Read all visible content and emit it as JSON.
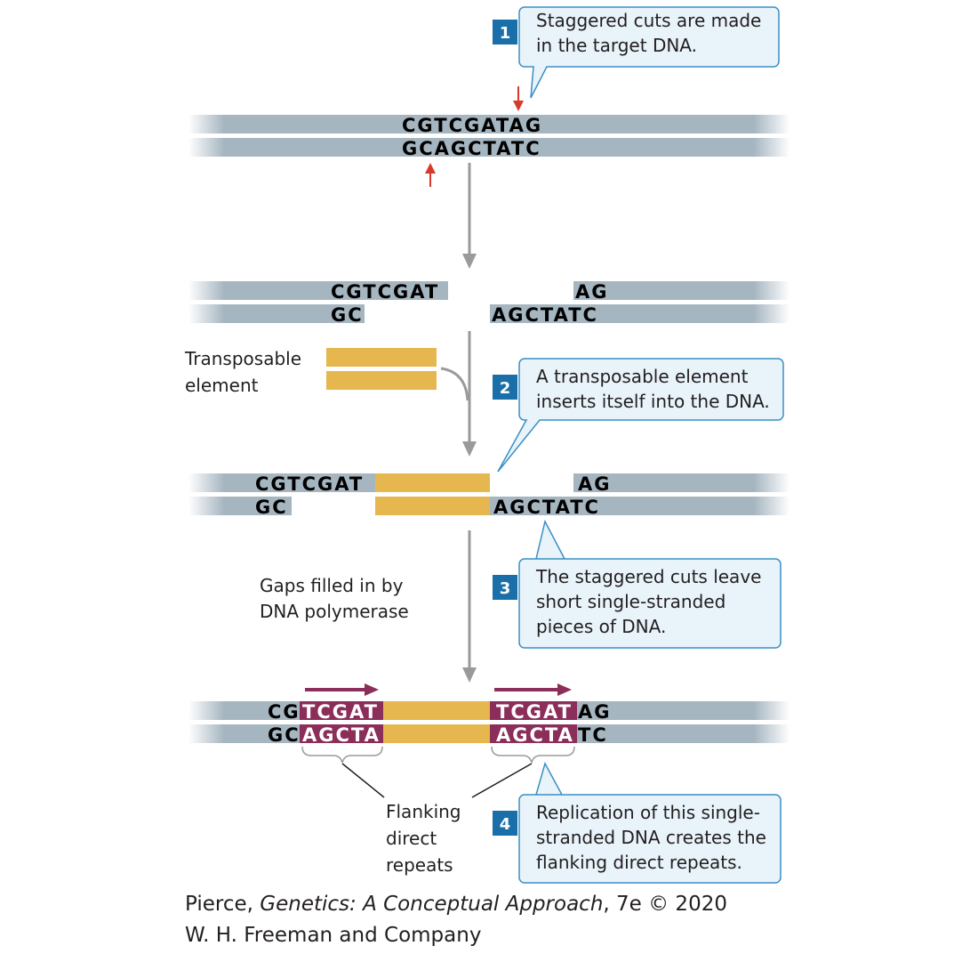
{
  "colors": {
    "dna_strand": "#a6b6c1",
    "transposon": "#e6b74e",
    "repeat": "#8b2e5a",
    "step_badge": "#1b6fa8",
    "bubble_fill": "#e8f3fa",
    "bubble_stroke": "#3a8fc4",
    "cut_arrow": "#d63a2a",
    "flow_arrow": "#9a9a9a"
  },
  "steps": [
    {
      "number": "1",
      "lines": [
        "Staggered cuts are made",
        "in the target DNA."
      ]
    },
    {
      "number": "2",
      "lines": [
        "A transposable element",
        "inserts itself into the DNA."
      ]
    },
    {
      "number": "3",
      "lines": [
        "The staggered cuts leave",
        "short single-stranded",
        "pieces of DNA."
      ]
    },
    {
      "number": "4",
      "lines": [
        "Replication of this single-",
        "stranded DNA creates the",
        "flanking direct repeats."
      ]
    }
  ],
  "stage1": {
    "top": "CGTCGATAG",
    "bottom": "GCAGCTATC"
  },
  "stage2": {
    "top_left": "CGTCGAT",
    "top_right": "AG",
    "bottom_left": "GC",
    "bottom_right": "AGCTATC"
  },
  "stage3": {
    "top_left": "CGTCGAT",
    "top_right": "AG",
    "bottom_left": "GC",
    "bottom_right": "AGCTATC"
  },
  "stage4": {
    "top_left_flank": "CG",
    "top_left_repeat": "TCGAT",
    "top_right_repeat": "TCGAT",
    "top_right_flank": "AG",
    "bottom_left_flank": "GC",
    "bottom_left_repeat": "AGCTA",
    "bottom_right_repeat": "AGCTA",
    "bottom_right_flank": "TC"
  },
  "labels": {
    "transposable_element": [
      "Transposable",
      "element"
    ],
    "gaps_filled": [
      "Gaps filled in by",
      "DNA polymerase"
    ],
    "flanking": [
      "Flanking",
      "direct",
      "repeats"
    ]
  },
  "credit": {
    "prefix": "Pierce, ",
    "book": "Genetics: A Conceptual Approach",
    "suffix": ", 7e © 2020",
    "line2": "W. H. Freeman and Company"
  }
}
